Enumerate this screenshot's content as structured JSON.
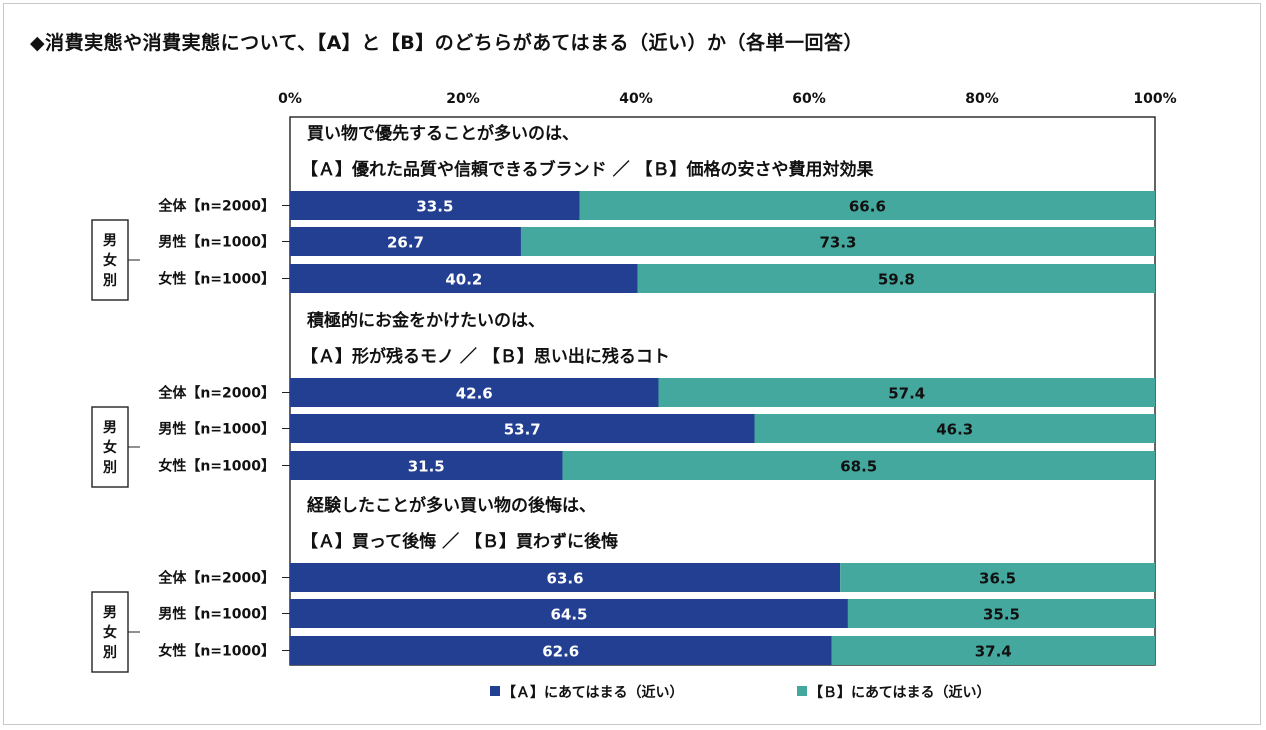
{
  "title": "◆消費実態や消費実態について、【A】と【B】のどちらがあてはまる（近い）か（各単一回答）",
  "chart_data": {
    "type": "bar",
    "orientation": "horizontal",
    "stacked": true,
    "percent": true,
    "xlim": [
      0,
      100
    ],
    "x_ticks": [
      "0%",
      "20%",
      "40%",
      "60%",
      "80%",
      "100%"
    ],
    "group_label": "男女別",
    "colors": {
      "A": "#233f92",
      "B": "#45a89e"
    },
    "legend": [
      "■【Ａ】にあてはまる（近い）",
      "■【Ｂ】にあてはまる（近い）"
    ],
    "questions": [
      {
        "text_line1": "買い物で優先することが多いのは、",
        "text_line2": "【Ａ】優れた品質や信頼できるブランド ／ 【Ｂ】価格の安さや費用対効果",
        "rows": [
          {
            "label": "全体【n=2000】",
            "a": 33.5,
            "b": 66.6,
            "a_label": "33.5",
            "b_label": "66.6"
          },
          {
            "label": "男性【n=1000】",
            "a": 26.7,
            "b": 73.3,
            "a_label": "26.7",
            "b_label": "73.3"
          },
          {
            "label": "女性【n=1000】",
            "a": 40.2,
            "b": 59.8,
            "a_label": "40.2",
            "b_label": "59.8"
          }
        ]
      },
      {
        "text_line1": "積極的にお金をかけたいのは、",
        "text_line2": "【Ａ】形が残るモノ ／ 【Ｂ】思い出に残るコト",
        "rows": [
          {
            "label": "全体【n=2000】",
            "a": 42.6,
            "b": 57.4,
            "a_label": "42.6",
            "b_label": "57.4"
          },
          {
            "label": "男性【n=1000】",
            "a": 53.7,
            "b": 46.3,
            "a_label": "53.7",
            "b_label": "46.3"
          },
          {
            "label": "女性【n=1000】",
            "a": 31.5,
            "b": 68.5,
            "a_label": "31.5",
            "b_label": "68.5"
          }
        ]
      },
      {
        "text_line1": "経験したことが多い買い物の後悔は、",
        "text_line2": "【Ａ】買って後悔 ／ 【Ｂ】買わずに後悔",
        "rows": [
          {
            "label": "全体【n=2000】",
            "a": 63.6,
            "b": 36.5,
            "a_label": "63.6",
            "b_label": "36.5"
          },
          {
            "label": "男性【n=1000】",
            "a": 64.5,
            "b": 35.5,
            "a_label": "64.5",
            "b_label": "35.5"
          },
          {
            "label": "女性【n=1000】",
            "a": 62.6,
            "b": 37.4,
            "a_label": "62.6",
            "b_label": "37.4"
          }
        ]
      }
    ]
  }
}
